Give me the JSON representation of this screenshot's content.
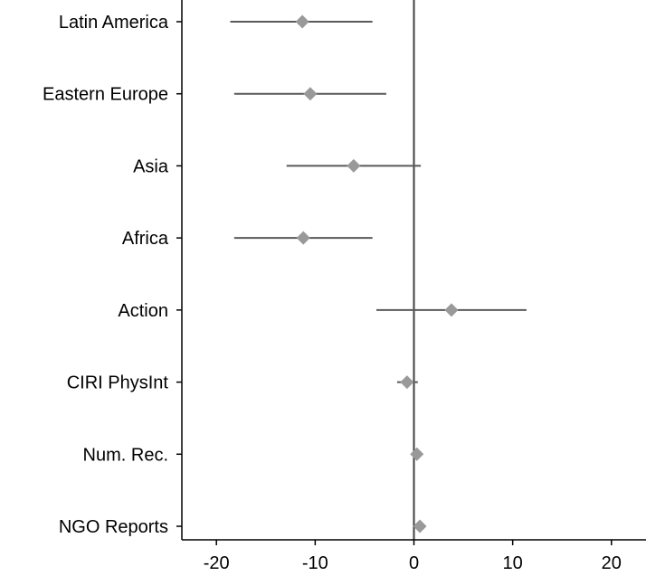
{
  "chart_data": {
    "type": "scatter",
    "subtype": "coefficient-plot",
    "title": "",
    "xlabel": "",
    "ylabel": "",
    "xlim": [
      -23.5,
      23.5
    ],
    "x_ticks": [
      -20,
      -10,
      0,
      10,
      20
    ],
    "x_tick_labels": [
      "-20",
      "-10",
      "0",
      "10",
      "20"
    ],
    "reference_line_x": 0,
    "grid": false,
    "legend": "none",
    "marker": "diamond",
    "colors": {
      "marker": "#999999",
      "interval": "#595959",
      "axis": "#000000",
      "reference": "#404040"
    },
    "categories": [
      "Latin America",
      "Eastern Europe",
      "Asia",
      "Africa",
      "Action",
      "CIRI PhysInt",
      "Num. Rec.",
      "NGO Reports"
    ],
    "points": [
      {
        "category": "Latin America",
        "estimate": -11.3,
        "lower": -18.6,
        "upper": -4.2
      },
      {
        "category": "Eastern Europe",
        "estimate": -10.5,
        "lower": -18.2,
        "upper": -2.8
      },
      {
        "category": "Asia",
        "estimate": -6.1,
        "lower": -12.9,
        "upper": 0.7
      },
      {
        "category": "Africa",
        "estimate": -11.2,
        "lower": -18.2,
        "upper": -4.2
      },
      {
        "category": "Action",
        "estimate": 3.8,
        "lower": -3.8,
        "upper": 11.4
      },
      {
        "category": "CIRI PhysInt",
        "estimate": -0.7,
        "lower": -1.7,
        "upper": 0.4
      },
      {
        "category": "Num. Rec.",
        "estimate": 0.3,
        "lower": 0.1,
        "upper": 0.5
      },
      {
        "category": "NGO Reports",
        "estimate": 0.6,
        "lower": 0.4,
        "upper": 0.8
      }
    ]
  }
}
